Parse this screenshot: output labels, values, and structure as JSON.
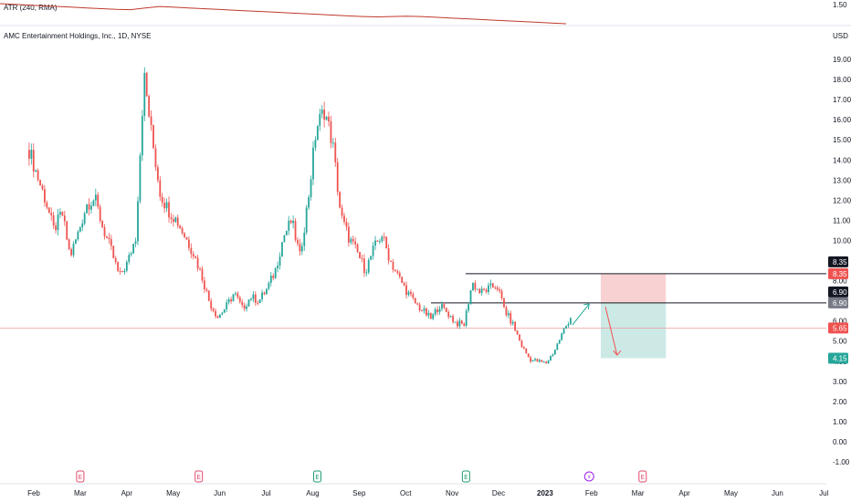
{
  "indicator": {
    "label": "ATR (240, RMA)",
    "axis_value": "1.50",
    "line_color": "#c0392b",
    "values": [
      1.56,
      1.555,
      1.55,
      1.545,
      1.54,
      1.535,
      1.53,
      1.525,
      1.52,
      1.518,
      1.53,
      1.54,
      1.535,
      1.53,
      1.525,
      1.52,
      1.515,
      1.51,
      1.505,
      1.5,
      1.495,
      1.49,
      1.485,
      1.48,
      1.475,
      1.47,
      1.468,
      1.47,
      1.472,
      1.47,
      1.465,
      1.46,
      1.455,
      1.45,
      1.445,
      1.44,
      1.435,
      1.43,
      1.425,
      1.42
    ]
  },
  "header": {
    "symbol": "AMC Entertainment Holdings, Inc., 1D, NYSE",
    "currency": "USD"
  },
  "chart_data": {
    "type": "candlestick",
    "title": "AMC Entertainment Holdings, Inc., 1D, NYSE",
    "ylabel": "USD",
    "ylim": [
      -1.0,
      20.0
    ],
    "y_ticks": [
      "19.00",
      "18.00",
      "17.00",
      "16.00",
      "15.00",
      "14.00",
      "13.00",
      "12.00",
      "11.00",
      "10.00",
      "9.00",
      "8.00",
      "7.00",
      "6.00",
      "5.00",
      "4.00",
      "3.00",
      "2.00",
      "1.00",
      "0.00",
      "-1.00"
    ],
    "y_tick_values": [
      19,
      18,
      17,
      16,
      15,
      14,
      13,
      12,
      11,
      10,
      9,
      8,
      7,
      6,
      5,
      4,
      3,
      2,
      1,
      0,
      -1
    ],
    "x_labels": [
      "Feb",
      "Mar",
      "Apr",
      "May",
      "Jun",
      "Jul",
      "Aug",
      "Sep",
      "Oct",
      "Nov",
      "Dec",
      "2023",
      "Feb",
      "Mar",
      "Apr",
      "May",
      "Jun",
      "Jul"
    ],
    "x_label_months": [
      1,
      2,
      3,
      4,
      5,
      6,
      7,
      8,
      9,
      10,
      11,
      12,
      13,
      14,
      15,
      16,
      17,
      18
    ],
    "close_series": [
      14.5,
      13.2,
      12.0,
      10.5,
      11.4,
      9.2,
      10.4,
      11.8,
      12.1,
      10.6,
      9.5,
      8.2,
      8.9,
      10.2,
      18.2,
      15.0,
      12.3,
      11.5,
      11.0,
      10.2,
      9.4,
      8.3,
      6.9,
      6.2,
      6.7,
      7.4,
      6.6,
      7.2,
      7.0,
      7.6,
      8.5,
      10.2,
      11.0,
      9.2,
      12.0,
      15.6,
      16.5,
      14.8,
      11.2,
      10.1,
      9.4,
      8.5,
      9.6,
      10.3,
      9.0,
      8.2,
      7.5,
      6.9,
      6.5,
      6.1,
      6.8,
      6.4,
      5.9,
      5.8,
      7.9,
      7.4,
      7.6,
      7.8,
      6.5,
      5.8,
      4.8,
      4.1,
      4.0,
      3.9,
      4.5,
      5.4,
      6.2
    ],
    "close_series_start_month": 0.9,
    "close_series_end_month": 12.55,
    "current_price": 5.65,
    "current_price_label": "5.65",
    "levels": [
      {
        "price": 8.35,
        "label": "8.35"
      },
      {
        "price": 6.9,
        "label": "6.90"
      }
    ],
    "position": {
      "entry": 6.9,
      "stop": 8.35,
      "target": 4.15,
      "target_label": "4.15",
      "start_month": 13.2,
      "end_month": 14.6
    },
    "events": [
      {
        "type": "earnings",
        "month": 2.0,
        "symbol": "E"
      },
      {
        "type": "earnings",
        "month": 4.55,
        "symbol": "E"
      },
      {
        "type": "earnings",
        "month": 7.1,
        "symbol": "E"
      },
      {
        "type": "earnings",
        "month": 10.3,
        "symbol": "E"
      },
      {
        "type": "split",
        "month": 12.95,
        "symbol": "⚡"
      },
      {
        "type": "earnings",
        "month": 14.1,
        "symbol": "E"
      }
    ]
  },
  "colors": {
    "up": "#26a69a",
    "down": "#ef5350",
    "stop_zone": "#f8d2d2",
    "target_zone": "#cce9e6",
    "level_line": "#131722",
    "price_line": "#ef9a9a",
    "axis_text": "#131722",
    "earnings_red": "#e04b6a",
    "earnings_green": "#1f9e6e",
    "split_purple": "#a020f0"
  }
}
